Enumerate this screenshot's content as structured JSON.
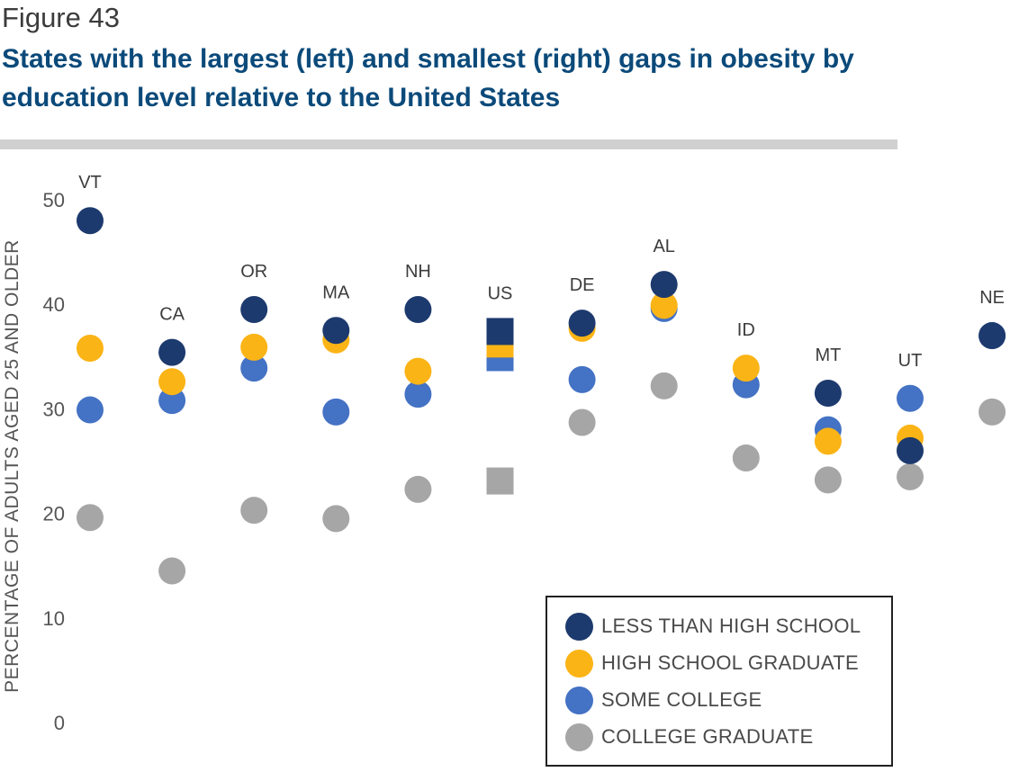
{
  "figure_label": "Figure 43",
  "title": "States with the largest (left) and smallest (right) gaps in obesity by education level relative to the United States",
  "chart_data": {
    "type": "scatter",
    "ylabel": "PERCENTAGE OF ADULTS AGED 25 AND OLDER",
    "ylim": [
      0,
      50
    ],
    "yticks": [
      0,
      10,
      20,
      30,
      40,
      50
    ],
    "grid": false,
    "legend_position": "bottom-right",
    "categories": [
      "VT",
      "CA",
      "OR",
      "MA",
      "NH",
      "US",
      "DE",
      "AL",
      "ID",
      "MT",
      "UT",
      "NE"
    ],
    "series": [
      {
        "name": "LESS THAN HIGH SCHOOL",
        "color": "#1d3a6e",
        "values": [
          48.0,
          35.4,
          39.5,
          37.5,
          39.5,
          37.4,
          38.2,
          41.9,
          null,
          31.5,
          26.0,
          37.0
        ]
      },
      {
        "name": "HIGH SCHOOL GRADUATE",
        "color": "#fbb416",
        "values": [
          35.8,
          32.6,
          35.9,
          36.6,
          33.6,
          36.2,
          37.7,
          39.9,
          33.9,
          26.9,
          27.2,
          null
        ]
      },
      {
        "name": "SOME COLLEGE",
        "color": "#4472c4",
        "values": [
          29.9,
          30.8,
          33.9,
          29.7,
          31.4,
          34.9,
          32.8,
          39.6,
          32.3,
          28.0,
          31.0,
          37.0
        ]
      },
      {
        "name": "COLLEGE GRADUATE",
        "color": "#a6a6a6",
        "values": [
          19.6,
          14.5,
          20.3,
          19.5,
          22.3,
          23.1,
          28.7,
          32.2,
          25.3,
          23.2,
          23.5,
          29.7
        ]
      }
    ]
  }
}
